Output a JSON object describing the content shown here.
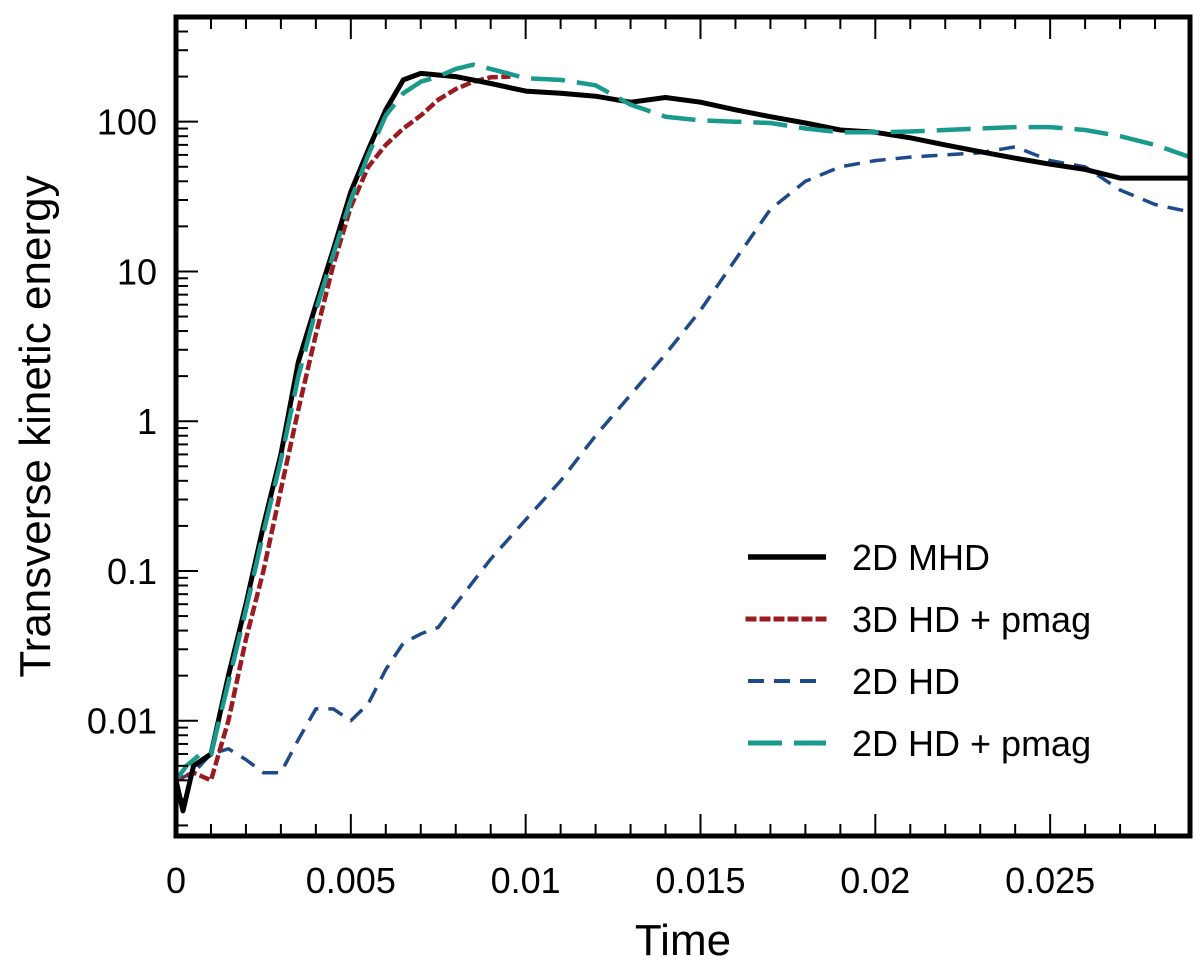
{
  "chart_data": {
    "type": "line",
    "title": "",
    "xlabel": "Time",
    "ylabel": "Transverse kinetic energy",
    "xlim": [
      0,
      0.029
    ],
    "ylim": [
      0.0017,
      500
    ],
    "yscale": "log",
    "x_ticks": [
      {
        "value": 0,
        "label": "0"
      },
      {
        "value": 0.005,
        "label": "0.005"
      },
      {
        "value": 0.01,
        "label": "0.01"
      },
      {
        "value": 0.015,
        "label": "0.015"
      },
      {
        "value": 0.02,
        "label": "0.02"
      },
      {
        "value": 0.025,
        "label": "0.025"
      }
    ],
    "y_ticks": [
      {
        "value": 0.01,
        "label": "0.01"
      },
      {
        "value": 0.1,
        "label": "0.1"
      },
      {
        "value": 1,
        "label": "1"
      },
      {
        "value": 10,
        "label": "10"
      },
      {
        "value": 100,
        "label": "100"
      }
    ],
    "legend_position": "lower-right",
    "series": [
      {
        "name": "2D MHD",
        "color": "#000000",
        "dash": "solid",
        "x": [
          0.0,
          0.0002,
          0.0005,
          0.001,
          0.0015,
          0.002,
          0.0025,
          0.003,
          0.0035,
          0.004,
          0.0045,
          0.005,
          0.0055,
          0.006,
          0.0065,
          0.007,
          0.0075,
          0.008,
          0.009,
          0.01,
          0.011,
          0.012,
          0.013,
          0.014,
          0.015,
          0.016,
          0.017,
          0.018,
          0.019,
          0.02,
          0.021,
          0.022,
          0.023,
          0.024,
          0.025,
          0.026,
          0.027,
          0.028,
          0.029
        ],
        "y": [
          0.004,
          0.0025,
          0.005,
          0.006,
          0.02,
          0.06,
          0.2,
          0.6,
          2.5,
          6,
          14,
          34,
          65,
          120,
          190,
          210,
          205,
          200,
          180,
          160,
          155,
          148,
          135,
          145,
          135,
          120,
          108,
          98,
          88,
          85,
          78,
          70,
          63,
          57,
          52,
          48,
          42,
          42,
          42
        ]
      },
      {
        "name": "3D HD + pmag",
        "color": "#9a1c20",
        "dash": "dotted",
        "x": [
          0.0,
          0.0005,
          0.001,
          0.0015,
          0.002,
          0.0025,
          0.003,
          0.0035,
          0.004,
          0.0045,
          0.005,
          0.0055,
          0.006,
          0.0065,
          0.007,
          0.0075,
          0.008,
          0.0085,
          0.009,
          0.0095
        ],
        "y": [
          0.004,
          0.0045,
          0.004,
          0.01,
          0.035,
          0.1,
          0.35,
          1.2,
          3.8,
          11,
          27,
          50,
          70,
          90,
          110,
          140,
          165,
          185,
          198,
          200
        ]
      },
      {
        "name": "2D HD",
        "color": "#1e4a8a",
        "dash": "dashed",
        "x": [
          0.0,
          0.0005,
          0.001,
          0.0015,
          0.002,
          0.0025,
          0.003,
          0.0035,
          0.004,
          0.0045,
          0.005,
          0.0055,
          0.006,
          0.0065,
          0.007,
          0.0075,
          0.008,
          0.009,
          0.01,
          0.011,
          0.012,
          0.013,
          0.014,
          0.015,
          0.016,
          0.017,
          0.018,
          0.019,
          0.02,
          0.021,
          0.022,
          0.023,
          0.024,
          0.025,
          0.026,
          0.027,
          0.028,
          0.029
        ],
        "y": [
          0.004,
          0.0045,
          0.006,
          0.0065,
          0.0055,
          0.0045,
          0.0045,
          0.0075,
          0.012,
          0.012,
          0.01,
          0.013,
          0.022,
          0.033,
          0.038,
          0.042,
          0.06,
          0.12,
          0.22,
          0.4,
          0.8,
          1.5,
          2.8,
          5.5,
          12,
          26,
          40,
          50,
          55,
          58,
          60,
          62,
          68,
          55,
          50,
          35,
          28,
          25
        ]
      },
      {
        "name": "2D HD + pmag",
        "color": "#1a9a8c",
        "dash": "longdash",
        "x": [
          0.0,
          0.0003,
          0.0007,
          0.001,
          0.0015,
          0.002,
          0.0025,
          0.003,
          0.0035,
          0.004,
          0.0045,
          0.005,
          0.0055,
          0.006,
          0.0065,
          0.007,
          0.0075,
          0.008,
          0.0085,
          0.009,
          0.01,
          0.011,
          0.012,
          0.013,
          0.014,
          0.015,
          0.016,
          0.017,
          0.018,
          0.019,
          0.02,
          0.021,
          0.022,
          0.023,
          0.024,
          0.025,
          0.026,
          0.027,
          0.028,
          0.029
        ],
        "y": [
          0.004,
          0.005,
          0.006,
          0.006,
          0.018,
          0.055,
          0.18,
          0.55,
          2.0,
          5.5,
          13,
          30,
          60,
          110,
          155,
          185,
          200,
          225,
          240,
          225,
          195,
          190,
          175,
          130,
          108,
          102,
          100,
          98,
          90,
          85,
          85,
          86,
          88,
          90,
          92,
          92,
          88,
          80,
          70,
          58
        ]
      }
    ]
  }
}
